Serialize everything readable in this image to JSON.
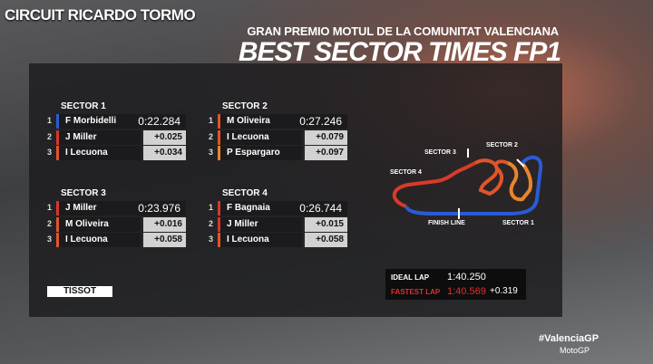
{
  "header": {
    "circuit": "CIRCUIT RICARDO TORMO",
    "event": "GRAN PREMIO MOTUL DE LA COMUNITAT VALENCIANA",
    "title": "BEST SECTOR TIMES FP1"
  },
  "sectors": [
    {
      "title": "SECTOR 1",
      "rows": [
        {
          "pos": "1",
          "rider": "F Morbidelli",
          "time": "0:22.284",
          "color": "#2a5bd7"
        },
        {
          "pos": "2",
          "rider": "J Miller",
          "time": "+0.025",
          "color": "#d4372c"
        },
        {
          "pos": "3",
          "rider": "I Lecuona",
          "time": "+0.034",
          "color": "#e0552a"
        }
      ]
    },
    {
      "title": "SECTOR 2",
      "rows": [
        {
          "pos": "1",
          "rider": "M Oliveira",
          "time": "0:27.246",
          "color": "#e0552a"
        },
        {
          "pos": "2",
          "rider": "I Lecuona",
          "time": "+0.079",
          "color": "#e0552a"
        },
        {
          "pos": "3",
          "rider": "P Espargaro",
          "time": "+0.097",
          "color": "#e9852e"
        }
      ]
    },
    {
      "title": "SECTOR 3",
      "rows": [
        {
          "pos": "1",
          "rider": "J Miller",
          "time": "0:23.976",
          "color": "#d4372c"
        },
        {
          "pos": "2",
          "rider": "M Oliveira",
          "time": "+0.016",
          "color": "#e0552a"
        },
        {
          "pos": "3",
          "rider": "I Lecuona",
          "time": "+0.058",
          "color": "#e0552a"
        }
      ]
    },
    {
      "title": "SECTOR 4",
      "rows": [
        {
          "pos": "1",
          "rider": "F Bagnaia",
          "time": "0:26.744",
          "color": "#d4372c"
        },
        {
          "pos": "2",
          "rider": "J Miller",
          "time": "+0.015",
          "color": "#d4372c"
        },
        {
          "pos": "3",
          "rider": "I Lecuona",
          "time": "+0.058",
          "color": "#e0552a"
        }
      ]
    }
  ],
  "track": {
    "labels": [
      "SECTOR 3",
      "SECTOR 2",
      "SECTOR 4",
      "FINISH LINE",
      "SECTOR 1"
    ]
  },
  "laps": {
    "ideal": {
      "label": "IDEAL LAP",
      "time": "1:40.250"
    },
    "fastest": {
      "label": "FASTEST LAP",
      "time": "1:40.569",
      "gap": "+0.319"
    }
  },
  "footer": {
    "sponsor": "TISSOT",
    "hashtag": "#ValenciaGP",
    "brand": "MotoGP"
  }
}
